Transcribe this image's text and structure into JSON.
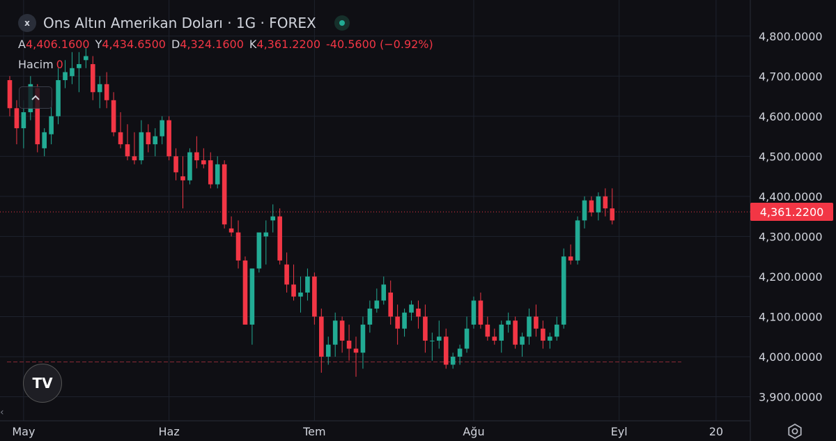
{
  "header": {
    "symbol_badge": "x",
    "title": "Ons Altın Amerikan Doları · 1G · FOREX",
    "status_color": "#22ab94",
    "ohlc": [
      {
        "label": "A",
        "value": "4,406.1600"
      },
      {
        "label": "Y",
        "value": "4,434.6500"
      },
      {
        "label": "D",
        "value": "4,324.1600"
      },
      {
        "label": "K",
        "value": "4,361.2200"
      }
    ],
    "change": "-40.5600 (−0.92%)",
    "volume_label": "Hacim",
    "volume_value": "0"
  },
  "price_tag": "4,361.2200",
  "logo_text": "TV",
  "icons": {
    "collapse": "chevron-up-icon",
    "settings": "gear-icon",
    "scroll": "chevron-left-icon",
    "logo": "tradingview-logo"
  },
  "colors": {
    "up": "#22ab94",
    "down": "#f23645",
    "grid": "#1e222d",
    "axis_text": "#d1d4dc"
  },
  "chart_data": {
    "type": "candlestick",
    "title": "",
    "grid": true,
    "ylim": [
      3840,
      4890
    ],
    "y_ticks": [
      "3,900.0000",
      "4,000.0000",
      "4,100.0000",
      "4,200.0000",
      "4,300.0000",
      "4,400.0000",
      "4,500.0000",
      "4,600.0000",
      "4,700.0000",
      "4,800.0000"
    ],
    "y_tick_values": [
      3900,
      4000,
      4100,
      4200,
      4300,
      4400,
      4500,
      4600,
      4700,
      4800
    ],
    "x_labels": [
      "May",
      "Haz",
      "Tem",
      "Ağu",
      "Eyl",
      "20"
    ],
    "x_label_index": [
      2,
      23,
      44,
      67,
      88,
      102
    ],
    "last_price": 4361.22,
    "reference_line": 3987,
    "candles": [
      [
        4690,
        4700,
        4600,
        4620
      ],
      [
        4620,
        4640,
        4530,
        4570
      ],
      [
        4570,
        4640,
        4520,
        4610
      ],
      [
        4610,
        4700,
        4590,
        4680
      ],
      [
        4670,
        4680,
        4510,
        4530
      ],
      [
        4520,
        4570,
        4500,
        4560
      ],
      [
        4555,
        4640,
        4530,
        4600
      ],
      [
        4600,
        4720,
        4580,
        4690
      ],
      [
        4690,
        4740,
        4670,
        4710
      ],
      [
        4700,
        4760,
        4680,
        4720
      ],
      [
        4720,
        4760,
        4660,
        4730
      ],
      [
        4740,
        4770,
        4720,
        4750
      ],
      [
        4730,
        4750,
        4640,
        4660
      ],
      [
        4660,
        4700,
        4620,
        4680
      ],
      [
        4680,
        4710,
        4620,
        4640
      ],
      [
        4640,
        4660,
        4550,
        4560
      ],
      [
        4560,
        4610,
        4520,
        4530
      ],
      [
        4530,
        4580,
        4490,
        4500
      ],
      [
        4500,
        4560,
        4480,
        4490
      ],
      [
        4490,
        4590,
        4480,
        4560
      ],
      [
        4560,
        4580,
        4510,
        4530
      ],
      [
        4530,
        4570,
        4500,
        4550
      ],
      [
        4550,
        4600,
        4530,
        4590
      ],
      [
        4590,
        4600,
        4490,
        4500
      ],
      [
        4500,
        4520,
        4440,
        4460
      ],
      [
        4450,
        4500,
        4370,
        4440
      ],
      [
        4440,
        4520,
        4430,
        4510
      ],
      [
        4510,
        4550,
        4470,
        4490
      ],
      [
        4490,
        4520,
        4470,
        4480
      ],
      [
        4490,
        4510,
        4420,
        4430
      ],
      [
        4430,
        4500,
        4420,
        4480
      ],
      [
        4480,
        4490,
        4320,
        4330
      ],
      [
        4320,
        4350,
        4300,
        4310
      ],
      [
        4310,
        4340,
        4220,
        4240
      ],
      [
        4240,
        4250,
        4080,
        4080
      ],
      [
        4080,
        4220,
        4030,
        4220
      ],
      [
        4220,
        4300,
        4210,
        4310
      ],
      [
        4300,
        4340,
        4230,
        4310
      ],
      [
        4340,
        4380,
        4310,
        4350
      ],
      [
        4350,
        4370,
        4230,
        4240
      ],
      [
        4230,
        4260,
        4160,
        4180
      ],
      [
        4180,
        4230,
        4140,
        4150
      ],
      [
        4150,
        4200,
        4110,
        4160
      ],
      [
        4160,
        4220,
        4140,
        4200
      ],
      [
        4200,
        4210,
        4080,
        4100
      ],
      [
        4100,
        4120,
        3960,
        4000
      ],
      [
        4000,
        4050,
        3980,
        4030
      ],
      [
        4030,
        4110,
        4000,
        4090
      ],
      [
        4090,
        4100,
        4010,
        4040
      ],
      [
        4040,
        4080,
        3990,
        4020
      ],
      [
        4020,
        4050,
        3950,
        4010
      ],
      [
        4010,
        4100,
        3970,
        4080
      ],
      [
        4080,
        4140,
        4060,
        4120
      ],
      [
        4120,
        4170,
        4110,
        4140
      ],
      [
        4140,
        4200,
        4130,
        4180
      ],
      [
        4160,
        4190,
        4080,
        4100
      ],
      [
        4100,
        4130,
        4030,
        4070
      ],
      [
        4070,
        4120,
        4050,
        4110
      ],
      [
        4110,
        4140,
        4090,
        4130
      ],
      [
        4120,
        4140,
        4070,
        4100
      ],
      [
        4100,
        4130,
        4010,
        4040
      ],
      [
        4040,
        4060,
        3990,
        4040
      ],
      [
        4040,
        4090,
        4020,
        4050
      ],
      [
        4050,
        4070,
        3970,
        3980
      ],
      [
        3980,
        4010,
        3970,
        4000
      ],
      [
        4000,
        4030,
        3980,
        4020
      ],
      [
        4020,
        4100,
        4010,
        4070
      ],
      [
        4080,
        4150,
        4070,
        4140
      ],
      [
        4140,
        4160,
        4070,
        4080
      ],
      [
        4080,
        4100,
        4040,
        4050
      ],
      [
        4050,
        4070,
        4030,
        4040
      ],
      [
        4040,
        4090,
        4010,
        4080
      ],
      [
        4080,
        4110,
        4060,
        4090
      ],
      [
        4090,
        4100,
        4020,
        4030
      ],
      [
        4030,
        4060,
        4000,
        4050
      ],
      [
        4050,
        4120,
        4030,
        4100
      ],
      [
        4100,
        4130,
        4050,
        4070
      ],
      [
        4070,
        4090,
        4020,
        4040
      ],
      [
        4040,
        4060,
        4020,
        4050
      ],
      [
        4050,
        4100,
        4040,
        4080
      ],
      [
        4080,
        4270,
        4070,
        4250
      ],
      [
        4250,
        4280,
        4230,
        4240
      ],
      [
        4240,
        4350,
        4230,
        4340
      ],
      [
        4340,
        4400,
        4320,
        4390
      ],
      [
        4390,
        4400,
        4350,
        4360
      ],
      [
        4360,
        4410,
        4340,
        4400
      ],
      [
        4400,
        4420,
        4350,
        4370
      ],
      [
        4370,
        4420,
        4330,
        4340
      ]
    ]
  }
}
